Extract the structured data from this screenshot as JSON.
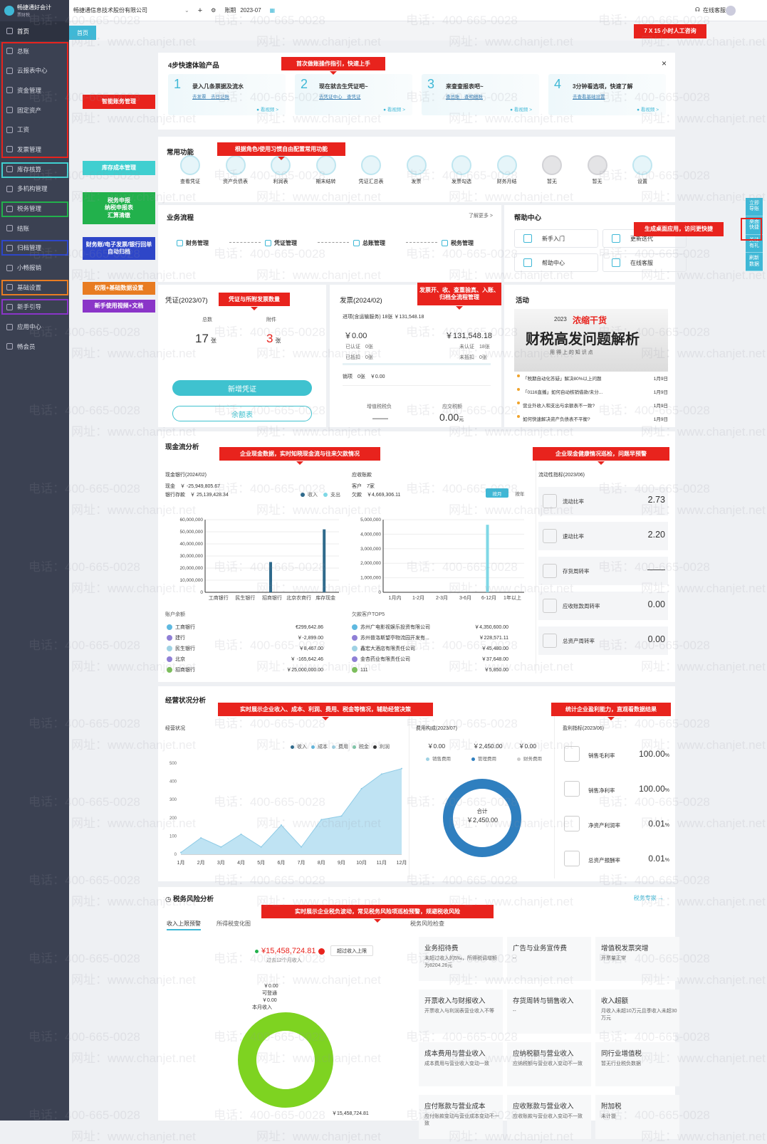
{
  "app": {
    "logo_title": "畅捷通好会计",
    "logo_sub": "票财税"
  },
  "sidebar": {
    "items": [
      {
        "label": "首页",
        "icon": "home-icon"
      },
      {
        "label": "总账",
        "icon": "ledger-icon"
      },
      {
        "label": "云报表中心",
        "icon": "report-icon"
      },
      {
        "label": "资金管理",
        "icon": "fund-icon"
      },
      {
        "label": "固定资产",
        "icon": "asset-icon"
      },
      {
        "label": "工资",
        "icon": "salary-icon"
      },
      {
        "label": "发票管理",
        "icon": "invoice-icon"
      },
      {
        "label": "库存核算",
        "icon": "inventory-icon"
      },
      {
        "label": "多机构管理",
        "icon": "org-icon"
      },
      {
        "label": "税务管理",
        "icon": "tax-icon"
      },
      {
        "label": "结账",
        "icon": "close-icon"
      },
      {
        "label": "归档管理",
        "icon": "archive-icon"
      },
      {
        "label": "小畅报销",
        "icon": "expense-icon"
      },
      {
        "label": "基础设置",
        "icon": "settings-icon"
      },
      {
        "label": "新手引导",
        "icon": "guide-icon"
      },
      {
        "label": "应用中心",
        "icon": "app-icon"
      },
      {
        "label": "畅会员",
        "icon": "vip-icon"
      }
    ]
  },
  "topbar": {
    "company": "畅捷通信息技术股份有限公司",
    "period_label": "账期",
    "period_value": "2023-07",
    "service": "在线客服"
  },
  "tabbar": {
    "home": "首页"
  },
  "callouts": {
    "service": "7 X 15 小时人工咨询",
    "first_login": "首次做账操作指引，快速上手",
    "functions": "根据角色/使用习惯自由配置常用功能",
    "desktop": "生成桌面应用，访问更快捷",
    "voucher": "凭证与所附发票数量",
    "invoice": "发票开、收、查重验真、入账、归档全流程管理",
    "cashflow": "企业现金数据，实时知晓现金流与往来欠款情况",
    "health": "企业现金健康情况巡检，问题早预警",
    "operation": "实时展示企业收入、成本、利润、费用、税金等情况，辅助经营决策",
    "profit": "统计企业盈利能力，直观看数据结果",
    "tax": "实时展示企业税负波动，常见税务风险项巡检预警，规避税收风险"
  },
  "left_callouts": {
    "finance": "智能账务管理",
    "inventory": "库存成本管理",
    "tax": "税务申报\n纳税申报表\n汇算清缴",
    "archive": "财务账/电子发票/银行回单 自动归档",
    "settings": "权限+基础数据设置",
    "guide": "新手使用视频+文档"
  },
  "quickstart": {
    "title": "4步快速体验产品",
    "close": "×",
    "steps": [
      {
        "num": "1",
        "title": "录入几条票据及流水",
        "links": "去发票　去日记账",
        "video": "● 看视频 >"
      },
      {
        "num": "2",
        "title": "现在就去生凭证吧~",
        "links": "去凭证中心　查凭证",
        "video": "● 看视频 >"
      },
      {
        "num": "3",
        "title": "来查查报表吧~",
        "links": "查总账　查明细账",
        "video": "● 看视频 >"
      },
      {
        "num": "4",
        "title": "3分钟看选项，快速了解",
        "links": "去查看基础设置",
        "video": "● 看视频 >"
      }
    ]
  },
  "functions": {
    "title": "常用功能",
    "items": [
      {
        "label": "查看凭证",
        "icon": "voucher-icon"
      },
      {
        "label": "资产负债表",
        "icon": "balance-sheet-icon"
      },
      {
        "label": "利润表",
        "icon": "profit-icon"
      },
      {
        "label": "期末结转",
        "icon": "carryover-icon"
      },
      {
        "label": "凭证汇总表",
        "icon": "summary-icon"
      },
      {
        "label": "发票",
        "icon": "invoice-icon"
      },
      {
        "label": "发票勾选",
        "icon": "check-icon"
      },
      {
        "label": "财务月结",
        "icon": "monthend-icon"
      },
      {
        "label": "暂无",
        "icon": "empty-icon"
      },
      {
        "label": "暂无",
        "icon": "empty-icon"
      },
      {
        "label": "设置",
        "icon": "gear-icon"
      }
    ]
  },
  "flow": {
    "title": "业务流程",
    "more": "了解更多 >",
    "items": [
      "财务管理",
      "凭证管理",
      "总账管理",
      "税务管理"
    ]
  },
  "help": {
    "title": "帮助中心",
    "items": [
      "新手入门",
      "更新迭代",
      "帮助中心",
      "在线客服"
    ]
  },
  "floatbar": [
    "立即导账",
    "桌面快捷",
    "关注有礼",
    "刷新数据"
  ],
  "voucher": {
    "title": "凭证(2023/07)",
    "total_label": "总数",
    "total": "17",
    "total_unit": "张",
    "attach_label": "附件",
    "attach": "3",
    "attach_unit": "张",
    "new_btn": "新增凭证",
    "balance_btn": "余额表"
  },
  "invoice": {
    "title": "发票(2024/02)",
    "input_line": "进项(含运输服务) 18张 ￥131,548.18",
    "left_amt": "￥0.00",
    "right_amt": "￥131,548.18",
    "auth": "已认证　0张",
    "not_auth": "未认证　18张",
    "deduct": "已抵扣　0张",
    "not_deduct": "未抵扣　0张",
    "sales": "销项　0张　￥0.00",
    "vat_label": "增值税税负",
    "vat_val": "—— ",
    "tax_label": "应交税额",
    "tax_val": "0.00",
    "tax_unit": "元"
  },
  "activity": {
    "title": "活动",
    "banner_year": "2023",
    "banner_tag": "浓缩干货",
    "banner_title": "财税高发问题解析",
    "banner_sub": "用 得 上 的 知 识 点",
    "news": [
      {
        "text": "「税期自动化答疑」解决80%以上问题",
        "date": "1月9日"
      },
      {
        "text": "「0116直播」如何自动核销借款/未分...",
        "date": "1月9日"
      },
      {
        "text": "营业外收入和支出与余额表不一致?",
        "date": "1月9日"
      },
      {
        "text": "如何快速解决资产负债表不平衡?",
        "date": "1月9日"
      }
    ]
  },
  "cash": {
    "title": "现金流分析",
    "bank_title": "现金银行(2024/02)",
    "cash_line": "现金　￥ -25,949,805.67",
    "bank_line": "银行存款　￥ 25,139,428.34",
    "legend_in": "收入",
    "legend_out": "支出",
    "recv_title": "应收账款",
    "customers": "客户　7家",
    "owed": "欠款　￥4,669,306.11",
    "toggle_a": "按月",
    "toggle_b": "按年",
    "acct_title": "账户余额",
    "accounts": [
      {
        "name": "工商银行",
        "val": "€299,642.86",
        "color": "#5fb9e0"
      },
      {
        "name": "建行",
        "val": "￥-2,899.00",
        "color": "#8f7fd6"
      },
      {
        "name": "民生银行",
        "val": "￥8,467.00",
        "color": "#9fd2e4"
      },
      {
        "name": "北京",
        "val": "￥ -165,642.46",
        "color": "#8f7fd6"
      },
      {
        "name": "招商银行",
        "val": "￥25,000,000.00",
        "color": "#7cbf5b"
      }
    ],
    "top_title": "欠款客户TOP5",
    "top": [
      {
        "name": "苏州广电影视娱乐投资有限公司",
        "val": "￥4,350,600.00",
        "color": "#5fb9e0"
      },
      {
        "name": "苏州普洛斯望亭物流园开发有...",
        "val": "￥228,571.11",
        "color": "#8f7fd6"
      },
      {
        "name": "鑫宏大酒店有限责任公司",
        "val": "￥45,480.00",
        "color": "#9fd2e4"
      },
      {
        "name": "金杏药业有限责任公司",
        "val": "￥37,648.00",
        "color": "#8f7fd6"
      },
      {
        "name": "111",
        "val": "￥5,850.00",
        "color": "#7cbf5b"
      }
    ],
    "liq_title": "流动性指标(2023/06)",
    "metrics": [
      {
        "name": "流动比率",
        "val": "2.73"
      },
      {
        "name": "速动比率",
        "val": "2.20"
      },
      {
        "name": "存货周转率",
        "val": "——"
      },
      {
        "name": "应收账款周转率",
        "val": "0.00"
      },
      {
        "name": "总资产周转率",
        "val": "0.00"
      }
    ]
  },
  "operation": {
    "title": "经营状况分析",
    "sub": "经营状况",
    "legend": [
      "收入",
      "成本",
      "费用",
      "税金",
      "利润"
    ],
    "exp_title": "费用构成(2023/07)",
    "exp_vals": [
      "￥0.00",
      "￥2,450.00",
      "￥0.00"
    ],
    "exp_names": [
      "销售费用",
      "管理费用",
      "财务费用"
    ],
    "donut_label": "合计",
    "donut_val": "￥2,450.00",
    "profit_title": "盈利指标(2023/06)",
    "profits": [
      {
        "name": "销售毛利率",
        "val": "100.00",
        "unit": "%"
      },
      {
        "name": "销售净利率",
        "val": "100.00",
        "unit": "%"
      },
      {
        "name": "净资产利润率",
        "val": "0.01",
        "unit": "%"
      },
      {
        "name": "总资产报酬率",
        "val": "0.01",
        "unit": "%"
      }
    ]
  },
  "tax": {
    "title": "税务风险分析",
    "expert": "税务专家 →",
    "tab1": "收入上限预警",
    "tab2": "所得税变化图",
    "check_title": "税务风险检查",
    "amount": "¥15,458,724.81",
    "amount_sub": "过去12个月收入",
    "limit_btn": "超过收入上限",
    "lbl1": "￥0.00",
    "lbl1b": "可登通",
    "lbl2": "￥0.00",
    "lbl2b": "本月收入",
    "bottom_amt": "￥15,458,724.81",
    "risks": [
      {
        "t": "业务招待费",
        "d": "未超过收入的5‰，所得税调增额为8204.26元"
      },
      {
        "t": "广告与业务宣传费",
        "d": "--"
      },
      {
        "t": "增值税发票突增",
        "d": "开票量正常"
      },
      {
        "t": "开票收入与财报收入",
        "d": "开票收入与利润表营业收入不等"
      },
      {
        "t": "存货周转与销售收入",
        "d": "--"
      },
      {
        "t": "收入超额",
        "d": "月收入未超10万元且季收入未超30万元"
      },
      {
        "t": "成本费用与营业收入",
        "d": "成本费用与营业收入变动一致"
      },
      {
        "t": "应纳税额与营业收入",
        "d": "应纳税额与营业收入变动不一致"
      },
      {
        "t": "同行业增值税",
        "d": "暂无行业税负数据"
      },
      {
        "t": "应付账款与营业成本",
        "d": "应付账款变动与营业成本变动不一致"
      },
      {
        "t": "应收账款与营业收入",
        "d": "应收账款与营业收入变动不一致"
      },
      {
        "t": "附加税",
        "d": "未计提"
      }
    ]
  },
  "watermark": {
    "phone": "电话：400-665-0028",
    "site": "网址：www.chanjet.net"
  },
  "chart_data": [
    {
      "type": "bar",
      "title": "现金银行(2024/02)",
      "categories": [
        "工商银行",
        "民生银行",
        "招商银行",
        "北京农商行",
        "库存现金"
      ],
      "series": [
        {
          "name": "收入",
          "values": [
            0,
            0,
            25000000,
            0,
            52000000
          ]
        },
        {
          "name": "支出",
          "values": [
            0,
            0,
            0,
            0,
            0
          ]
        }
      ],
      "ylim": [
        0,
        60000000
      ],
      "yticks": [
        "0",
        "10,000,000",
        "20,000,000",
        "30,000,000",
        "40,000,000",
        "50,000,000",
        "60,000,000"
      ]
    },
    {
      "type": "bar",
      "title": "应收账款",
      "categories": [
        "1月内",
        "1-2月",
        "2-3月",
        "3-6月",
        "6-12月",
        "1年以上"
      ],
      "values": [
        0,
        0,
        0,
        0,
        4650000,
        0
      ],
      "ylim": [
        0,
        5000000
      ],
      "yticks": [
        "0",
        "1,000,000",
        "2,000,000",
        "3,000,000",
        "4,000,000",
        "5,000,000"
      ]
    },
    {
      "type": "area",
      "title": "经营状况",
      "categories": [
        "1月",
        "2月",
        "3月",
        "4月",
        "5月",
        "6月",
        "7月",
        "8月",
        "9月",
        "10月",
        "11月",
        "12月"
      ],
      "values": [
        10,
        90,
        40,
        110,
        40,
        160,
        40,
        190,
        210,
        360,
        440,
        470
      ],
      "ylim": [
        0,
        500
      ],
      "yticks": [
        "0",
        "100",
        "200",
        "300",
        "400",
        "500"
      ]
    },
    {
      "type": "pie",
      "title": "费用构成(2023/07)",
      "categories": [
        "销售费用",
        "管理费用",
        "财务费用"
      ],
      "values": [
        0,
        2450,
        0
      ]
    }
  ]
}
